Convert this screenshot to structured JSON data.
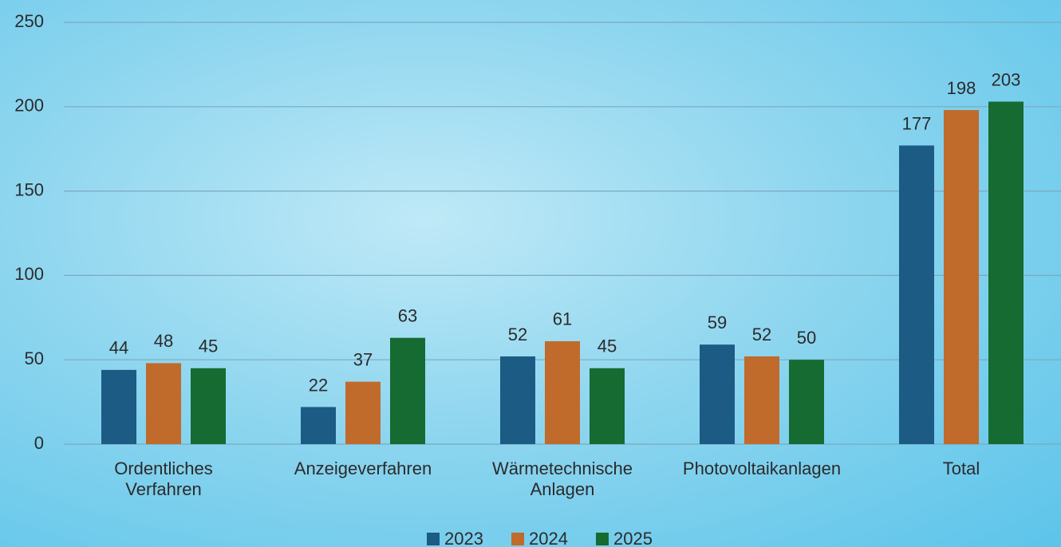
{
  "chart_data": {
    "type": "bar",
    "categories": [
      "Ordentliches Verfahren",
      "Anzeigeverfahren",
      "Wärmetechnische Anlagen",
      "Photovoltaikanlagen",
      "Total"
    ],
    "series": [
      {
        "name": "2023",
        "color": "#1b5b84",
        "values": [
          44,
          22,
          52,
          59,
          177
        ]
      },
      {
        "name": "2024",
        "color": "#c06a2c",
        "values": [
          48,
          37,
          61,
          52,
          198
        ]
      },
      {
        "name": "2025",
        "color": "#156b31",
        "values": [
          45,
          63,
          45,
          50,
          203
        ]
      }
    ],
    "ylim": [
      0,
      250
    ],
    "yticks": [
      0,
      50,
      100,
      150,
      200,
      250
    ],
    "grid": true,
    "legend": "bottom"
  }
}
